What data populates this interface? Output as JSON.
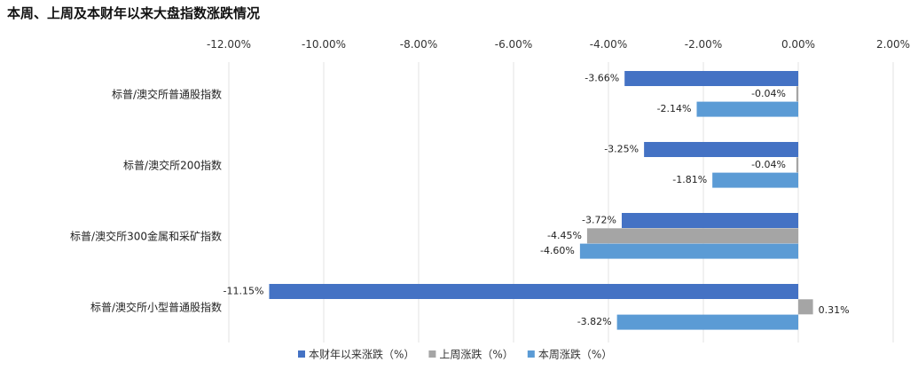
{
  "chart_data": {
    "type": "bar",
    "orientation": "horizontal",
    "title": "本周、上周及本财年以来大盘指数涨跌情况",
    "categories": [
      "标普/澳交所普通股指数",
      "标普/澳交所200指数",
      "标普/澳交所300金属和采矿指数",
      "标普/澳交所小型普通股指数"
    ],
    "series": [
      {
        "name": "本财年以来涨跌（%）",
        "color": "#4472C4",
        "values": [
          -3.66,
          -3.25,
          -3.72,
          -11.15
        ],
        "labels": [
          "-3.66%",
          "-3.25%",
          "-3.72%",
          "-11.15%"
        ]
      },
      {
        "name": "上周涨跌（%）",
        "color": "#A5A5A5",
        "values": [
          -0.04,
          -0.04,
          -4.45,
          0.31
        ],
        "labels": [
          "-0.04%",
          "-0.04%",
          "-4.45%",
          "0.31%"
        ]
      },
      {
        "name": "本周涨跌（%）",
        "color": "#5B9BD5",
        "values": [
          -2.14,
          -1.81,
          -4.6,
          -3.82
        ],
        "labels": [
          "-2.14%",
          "-1.81%",
          "-4.60%",
          "-3.82%"
        ]
      }
    ],
    "xlim": [
      -12,
      2
    ],
    "x_ticks": [
      -12,
      -10,
      -8,
      -6,
      -4,
      -2,
      0,
      2
    ],
    "x_tick_labels": [
      "-12.00%",
      "-10.00%",
      "-8.00%",
      "-6.00%",
      "-4.00%",
      "-2.00%",
      "0.00%",
      "2.00%"
    ],
    "x_axis_position": "top",
    "grid": true,
    "legend_position": "bottom"
  }
}
